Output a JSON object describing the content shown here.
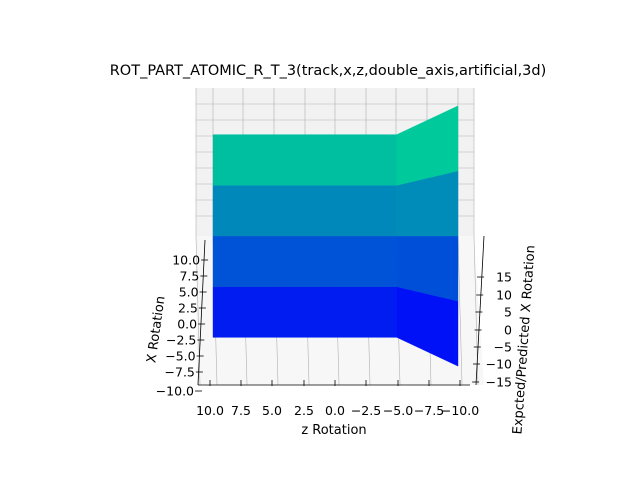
{
  "chart_data": {
    "type": "surface",
    "title": "ROT_PART_ATOMIC_R_T_3(track,x,z,double_axis,artificial,3d)",
    "xlabel": "z Rotation",
    "ylabel": "X Rotation",
    "zlabel": "Expcted/Predicted X Rotation",
    "x_ticks": [
      "10.0",
      "7.5",
      "5.0",
      "2.5",
      "0.0",
      "−2.5",
      "−5.0",
      "−7.5",
      "−10.0"
    ],
    "y_ticks": [
      "−10.0",
      "−7.5",
      "−5.0",
      "−2.5",
      "0.0",
      "2.5",
      "5.0",
      "7.5",
      "10.0"
    ],
    "z_ticks": [
      "−15",
      "−10",
      "−5",
      "0",
      "5",
      "10",
      "15"
    ],
    "xlim": [
      -10,
      10
    ],
    "ylim": [
      -10,
      10
    ],
    "zlim": [
      -15,
      20
    ],
    "grid": true,
    "colormap": "winter",
    "x": [
      10,
      5,
      0,
      -5,
      -10
    ],
    "y": [
      -10,
      -5,
      0,
      5,
      10
    ],
    "z": [
      [
        -14.8,
        -14.8,
        -14.8,
        -14.8,
        -19.0
      ],
      [
        -7.4,
        -7.4,
        -7.4,
        -7.4,
        -9.5
      ],
      [
        0,
        0,
        0,
        0,
        0
      ],
      [
        7.4,
        7.4,
        7.4,
        7.4,
        9.5
      ],
      [
        14.8,
        14.8,
        14.8,
        14.8,
        19.0
      ]
    ],
    "colors": {
      "pane": "#f2f2f2",
      "grid": "#b0b0b0",
      "surface_low": "#0000ff",
      "surface_high": "#00ff80"
    }
  }
}
